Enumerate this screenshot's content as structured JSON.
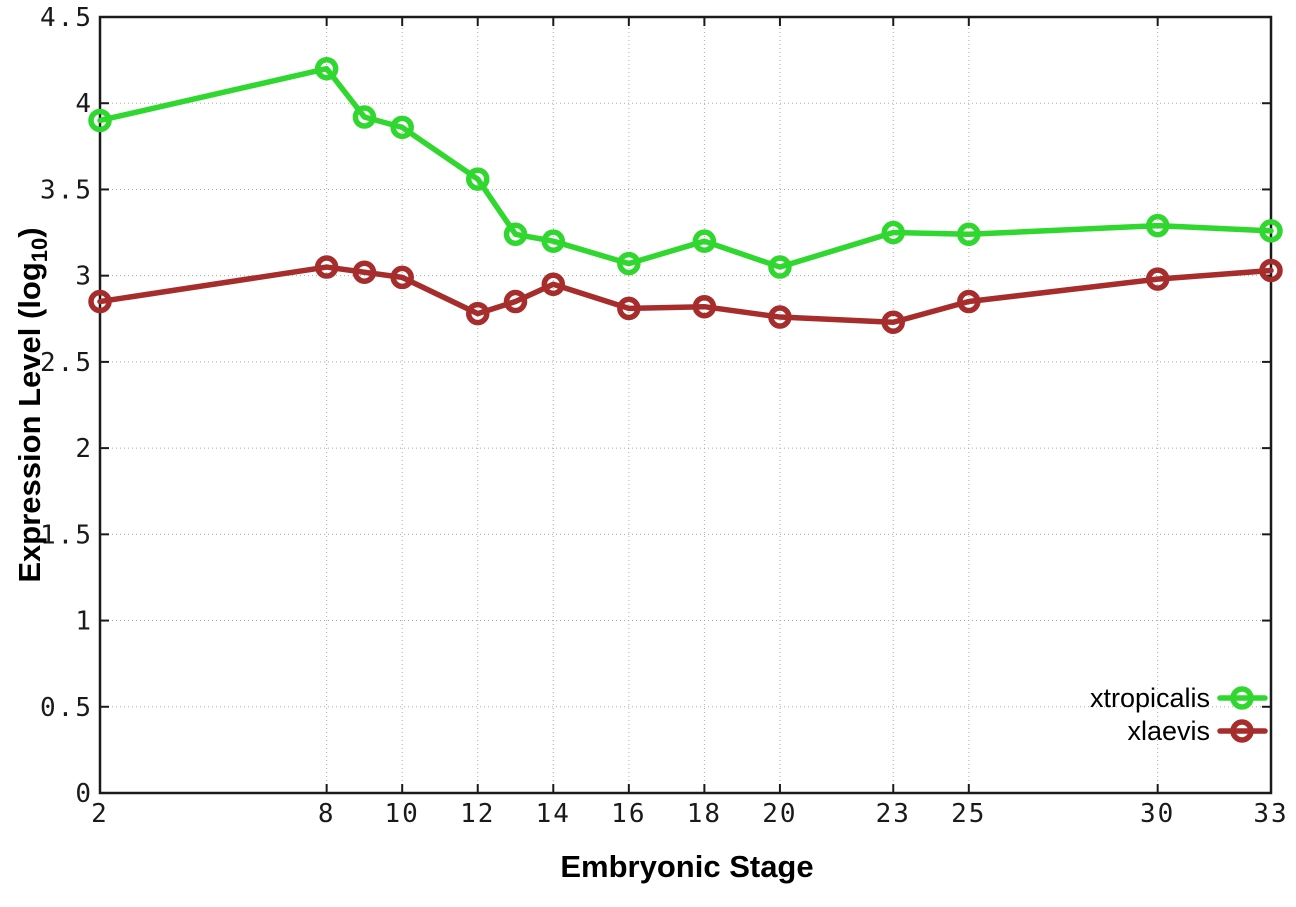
{
  "figure": {
    "background": "#ffffff",
    "plot_border_color": "#1a1a1a",
    "grid_color": "#ababab"
  },
  "chart_data": {
    "type": "line",
    "title": "",
    "xlabel": "Embryonic Stage",
    "ylabel": "Expression Level (log10)",
    "ylabel_parts": {
      "prefix": "Expression Level (log",
      "sub": "10",
      "suffix": ")"
    },
    "x": [
      2,
      8,
      9,
      10,
      12,
      13,
      14,
      16,
      18,
      20,
      23,
      25,
      30,
      33
    ],
    "series": [
      {
        "name": "xtropicalis",
        "color": "#2fd72f",
        "values": [
          3.9,
          4.2,
          3.92,
          3.86,
          3.56,
          3.24,
          3.2,
          3.07,
          3.2,
          3.05,
          3.25,
          3.24,
          3.29,
          3.26
        ]
      },
      {
        "name": "xlaevis",
        "color": "#a72c2c",
        "values": [
          2.85,
          3.05,
          3.02,
          2.99,
          2.78,
          2.85,
          2.95,
          2.81,
          2.82,
          2.76,
          2.73,
          2.85,
          2.98,
          3.03
        ]
      }
    ],
    "x_ticks": [
      2,
      8,
      10,
      12,
      14,
      16,
      18,
      20,
      23,
      25,
      30,
      33
    ],
    "y_ticks": [
      0,
      0.5,
      1,
      1.5,
      2,
      2.5,
      3,
      3.5,
      4,
      4.5
    ],
    "y_tick_labels": [
      "0",
      "0.5",
      "1",
      "1.5",
      "2",
      "2.5",
      "3",
      "3.5",
      "4",
      "4.5"
    ],
    "xlim": [
      2,
      33
    ],
    "ylim": [
      0,
      4.5
    ],
    "grid": true,
    "marker": "open-circle",
    "legend_position": "bottom-right"
  }
}
